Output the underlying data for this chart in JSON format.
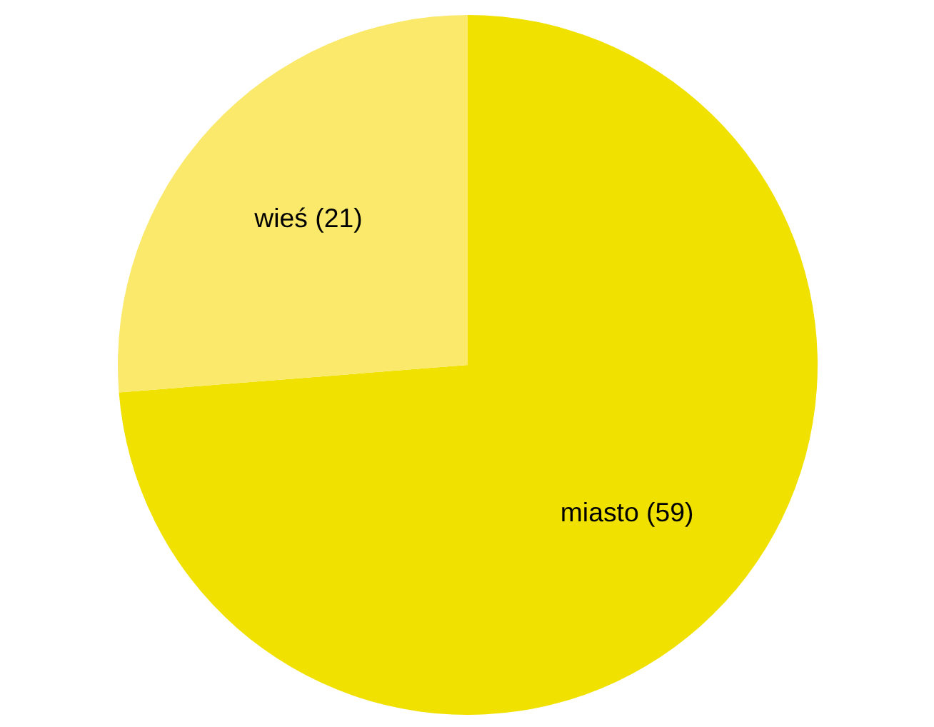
{
  "chart_data": {
    "type": "pie",
    "categories": [
      "miasto (59)",
      "wieś (21)"
    ],
    "values": [
      59,
      21
    ],
    "colors": [
      "#f0e100",
      "#fbe96b"
    ]
  }
}
